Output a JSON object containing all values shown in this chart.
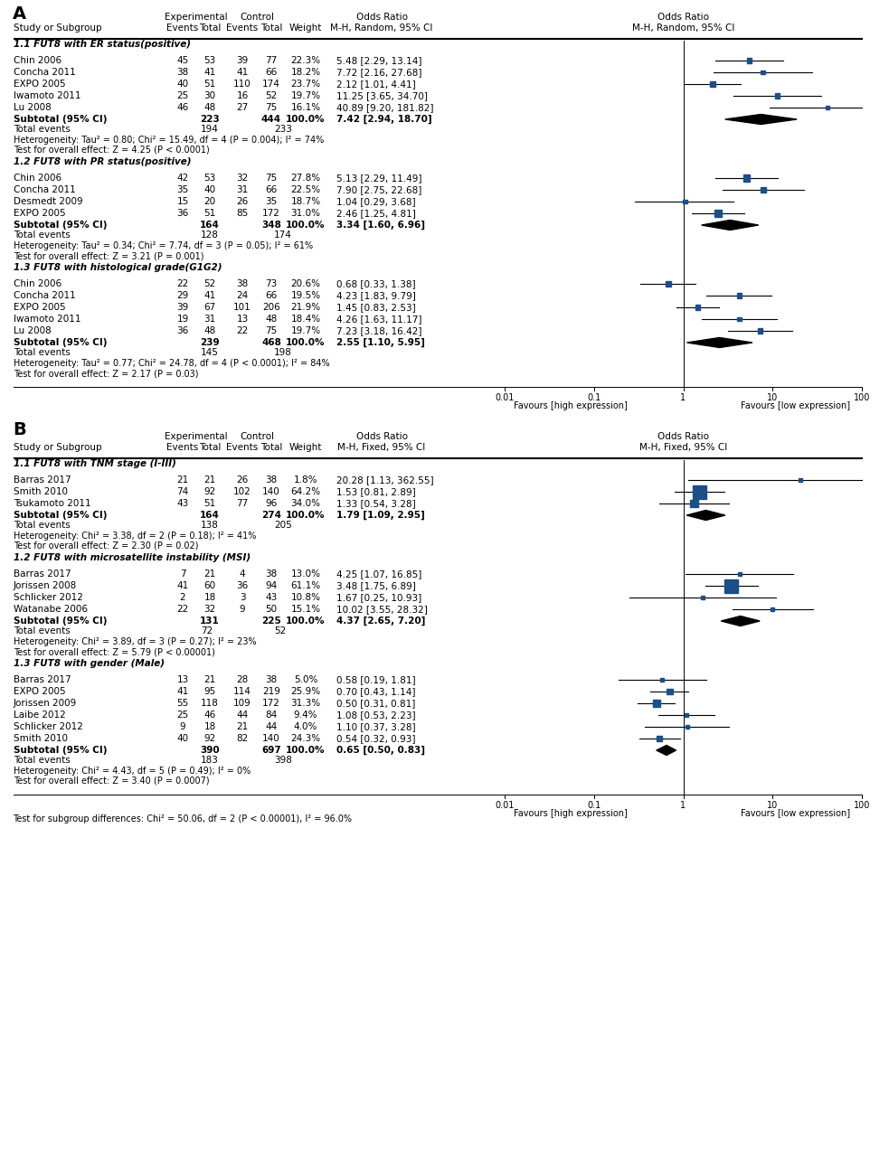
{
  "panel_A": {
    "title": "A",
    "method": "M-H, Random, 95% CI",
    "groups": [
      {
        "name": "1.1 FUT8 with ER status(positive)",
        "studies": [
          {
            "study": "Chin 2006",
            "exp_e": 45,
            "exp_t": 53,
            "ctl_e": 39,
            "ctl_t": 77,
            "weight": "22.3%",
            "or": 5.48,
            "ci_lo": 2.29,
            "ci_hi": 13.14
          },
          {
            "study": "Concha 2011",
            "exp_e": 38,
            "exp_t": 41,
            "ctl_e": 41,
            "ctl_t": 66,
            "weight": "18.2%",
            "or": 7.72,
            "ci_lo": 2.16,
            "ci_hi": 27.68
          },
          {
            "study": "EXPO 2005",
            "exp_e": 40,
            "exp_t": 51,
            "ctl_e": 110,
            "ctl_t": 174,
            "weight": "23.7%",
            "or": 2.12,
            "ci_lo": 1.01,
            "ci_hi": 4.41
          },
          {
            "study": "Iwamoto 2011",
            "exp_e": 25,
            "exp_t": 30,
            "ctl_e": 16,
            "ctl_t": 52,
            "weight": "19.7%",
            "or": 11.25,
            "ci_lo": 3.65,
            "ci_hi": 34.7
          },
          {
            "study": "Lu 2008",
            "exp_e": 46,
            "exp_t": 48,
            "ctl_e": 27,
            "ctl_t": 75,
            "weight": "16.1%",
            "or": 40.89,
            "ci_lo": 9.2,
            "ci_hi": 181.82
          }
        ],
        "subtotal": {
          "or": 7.42,
          "ci_lo": 2.94,
          "ci_hi": 18.7,
          "exp_total": 223,
          "ctl_total": 444,
          "exp_events": 194,
          "ctl_events": 233
        },
        "heterogeneity": "Heterogeneity: Tau² = 0.80; Chi² = 15.49, df = 4 (P = 0.004); I² = 74%",
        "overall": "Test for overall effect: Z = 4.25 (P < 0.0001)"
      },
      {
        "name": "1.2 FUT8 with PR status(positive)",
        "studies": [
          {
            "study": "Chin 2006",
            "exp_e": 42,
            "exp_t": 53,
            "ctl_e": 32,
            "ctl_t": 75,
            "weight": "27.8%",
            "or": 5.13,
            "ci_lo": 2.29,
            "ci_hi": 11.49
          },
          {
            "study": "Concha 2011",
            "exp_e": 35,
            "exp_t": 40,
            "ctl_e": 31,
            "ctl_t": 66,
            "weight": "22.5%",
            "or": 7.9,
            "ci_lo": 2.75,
            "ci_hi": 22.68
          },
          {
            "study": "Desmedt 2009",
            "exp_e": 15,
            "exp_t": 20,
            "ctl_e": 26,
            "ctl_t": 35,
            "weight": "18.7%",
            "or": 1.04,
            "ci_lo": 0.29,
            "ci_hi": 3.68
          },
          {
            "study": "EXPO 2005",
            "exp_e": 36,
            "exp_t": 51,
            "ctl_e": 85,
            "ctl_t": 172,
            "weight": "31.0%",
            "or": 2.46,
            "ci_lo": 1.25,
            "ci_hi": 4.81
          }
        ],
        "subtotal": {
          "or": 3.34,
          "ci_lo": 1.6,
          "ci_hi": 6.96,
          "exp_total": 164,
          "ctl_total": 348,
          "exp_events": 128,
          "ctl_events": 174
        },
        "heterogeneity": "Heterogeneity: Tau² = 0.34; Chi² = 7.74, df = 3 (P = 0.05); I² = 61%",
        "overall": "Test for overall effect: Z = 3.21 (P = 0.001)"
      },
      {
        "name": "1.3 FUT8 with histological grade(G1G2)",
        "studies": [
          {
            "study": "Chin 2006",
            "exp_e": 22,
            "exp_t": 52,
            "ctl_e": 38,
            "ctl_t": 73,
            "weight": "20.6%",
            "or": 0.68,
            "ci_lo": 0.33,
            "ci_hi": 1.38
          },
          {
            "study": "Concha 2011",
            "exp_e": 29,
            "exp_t": 41,
            "ctl_e": 24,
            "ctl_t": 66,
            "weight": "19.5%",
            "or": 4.23,
            "ci_lo": 1.83,
            "ci_hi": 9.79
          },
          {
            "study": "EXPO 2005",
            "exp_e": 39,
            "exp_t": 67,
            "ctl_e": 101,
            "ctl_t": 206,
            "weight": "21.9%",
            "or": 1.45,
            "ci_lo": 0.83,
            "ci_hi": 2.53
          },
          {
            "study": "Iwamoto 2011",
            "exp_e": 19,
            "exp_t": 31,
            "ctl_e": 13,
            "ctl_t": 48,
            "weight": "18.4%",
            "or": 4.26,
            "ci_lo": 1.63,
            "ci_hi": 11.17
          },
          {
            "study": "Lu 2008",
            "exp_e": 36,
            "exp_t": 48,
            "ctl_e": 22,
            "ctl_t": 75,
            "weight": "19.7%",
            "or": 7.23,
            "ci_lo": 3.18,
            "ci_hi": 16.42
          }
        ],
        "subtotal": {
          "or": 2.55,
          "ci_lo": 1.1,
          "ci_hi": 5.95,
          "exp_total": 239,
          "ctl_total": 468,
          "exp_events": 145,
          "ctl_events": 198
        },
        "heterogeneity": "Heterogeneity: Tau² = 0.77; Chi² = 24.78, df = 4 (P < 0.0001); I² = 84%",
        "overall": "Test for overall effect: Z = 2.17 (P = 0.03)"
      }
    ],
    "xaxis_label1": "Favours [high expression]",
    "xaxis_label2": "Favours [low expression]"
  },
  "panel_B": {
    "title": "B",
    "method": "M-H, Fixed, 95% CI",
    "groups": [
      {
        "name": "1.1 FUT8 with TNM stage (I-III)",
        "studies": [
          {
            "study": "Barras 2017",
            "exp_e": 21,
            "exp_t": 21,
            "ctl_e": 26,
            "ctl_t": 38,
            "weight": "1.8%",
            "or": 20.28,
            "ci_lo": 1.13,
            "ci_hi": 362.55
          },
          {
            "study": "Smith 2010",
            "exp_e": 74,
            "exp_t": 92,
            "ctl_e": 102,
            "ctl_t": 140,
            "weight": "64.2%",
            "or": 1.53,
            "ci_lo": 0.81,
            "ci_hi": 2.89
          },
          {
            "study": "Tsukamoto 2011",
            "exp_e": 43,
            "exp_t": 51,
            "ctl_e": 77,
            "ctl_t": 96,
            "weight": "34.0%",
            "or": 1.33,
            "ci_lo": 0.54,
            "ci_hi": 3.28
          }
        ],
        "subtotal": {
          "or": 1.79,
          "ci_lo": 1.09,
          "ci_hi": 2.95,
          "exp_total": 164,
          "ctl_total": 274,
          "exp_events": 138,
          "ctl_events": 205
        },
        "heterogeneity": "Heterogeneity: Chi² = 3.38, df = 2 (P = 0.18); I² = 41%",
        "overall": "Test for overall effect: Z = 2.30 (P = 0.02)"
      },
      {
        "name": "1.2 FUT8 with microsatellite instability (MSI)",
        "studies": [
          {
            "study": "Barras 2017",
            "exp_e": 7,
            "exp_t": 21,
            "ctl_e": 4,
            "ctl_t": 38,
            "weight": "13.0%",
            "or": 4.25,
            "ci_lo": 1.07,
            "ci_hi": 16.85
          },
          {
            "study": "Jorissen 2008",
            "exp_e": 41,
            "exp_t": 60,
            "ctl_e": 36,
            "ctl_t": 94,
            "weight": "61.1%",
            "or": 3.48,
            "ci_lo": 1.75,
            "ci_hi": 6.89
          },
          {
            "study": "Schlicker 2012",
            "exp_e": 2,
            "exp_t": 18,
            "ctl_e": 3,
            "ctl_t": 43,
            "weight": "10.8%",
            "or": 1.67,
            "ci_lo": 0.25,
            "ci_hi": 10.93
          },
          {
            "study": "Watanabe 2006",
            "exp_e": 22,
            "exp_t": 32,
            "ctl_e": 9,
            "ctl_t": 50,
            "weight": "15.1%",
            "or": 10.02,
            "ci_lo": 3.55,
            "ci_hi": 28.32
          }
        ],
        "subtotal": {
          "or": 4.37,
          "ci_lo": 2.65,
          "ci_hi": 7.2,
          "exp_total": 131,
          "ctl_total": 225,
          "exp_events": 72,
          "ctl_events": 52
        },
        "heterogeneity": "Heterogeneity: Chi² = 3.89, df = 3 (P = 0.27); I² = 23%",
        "overall": "Test for overall effect: Z = 5.79 (P < 0.00001)"
      },
      {
        "name": "1.3 FUT8 with gender (Male)",
        "studies": [
          {
            "study": "Barras 2017",
            "exp_e": 13,
            "exp_t": 21,
            "ctl_e": 28,
            "ctl_t": 38,
            "weight": "5.0%",
            "or": 0.58,
            "ci_lo": 0.19,
            "ci_hi": 1.81
          },
          {
            "study": "EXPO 2005",
            "exp_e": 41,
            "exp_t": 95,
            "ctl_e": 114,
            "ctl_t": 219,
            "weight": "25.9%",
            "or": 0.7,
            "ci_lo": 0.43,
            "ci_hi": 1.14
          },
          {
            "study": "Jorissen 2009",
            "exp_e": 55,
            "exp_t": 118,
            "ctl_e": 109,
            "ctl_t": 172,
            "weight": "31.3%",
            "or": 0.5,
            "ci_lo": 0.31,
            "ci_hi": 0.81
          },
          {
            "study": "Laibe 2012",
            "exp_e": 25,
            "exp_t": 46,
            "ctl_e": 44,
            "ctl_t": 84,
            "weight": "9.4%",
            "or": 1.08,
            "ci_lo": 0.53,
            "ci_hi": 2.23
          },
          {
            "study": "Schlicker 2012",
            "exp_e": 9,
            "exp_t": 18,
            "ctl_e": 21,
            "ctl_t": 44,
            "weight": "4.0%",
            "or": 1.1,
            "ci_lo": 0.37,
            "ci_hi": 3.28
          },
          {
            "study": "Smith 2010",
            "exp_e": 40,
            "exp_t": 92,
            "ctl_e": 82,
            "ctl_t": 140,
            "weight": "24.3%",
            "or": 0.54,
            "ci_lo": 0.32,
            "ci_hi": 0.93
          }
        ],
        "subtotal": {
          "or": 0.65,
          "ci_lo": 0.5,
          "ci_hi": 0.83,
          "exp_total": 390,
          "ctl_total": 697,
          "exp_events": 183,
          "ctl_events": 398
        },
        "heterogeneity": "Heterogeneity: Chi² = 4.43, df = 5 (P = 0.49); I² = 0%",
        "overall": "Test for overall effect: Z = 3.40 (P = 0.0007)"
      }
    ],
    "xaxis_label1": "Favours [high expression]",
    "xaxis_label2": "Favours [low expression]",
    "subgroup_diff": "Test for subgroup differences: Chi² = 50.06, df = 2 (P < 0.00001), I² = 96.0%"
  }
}
